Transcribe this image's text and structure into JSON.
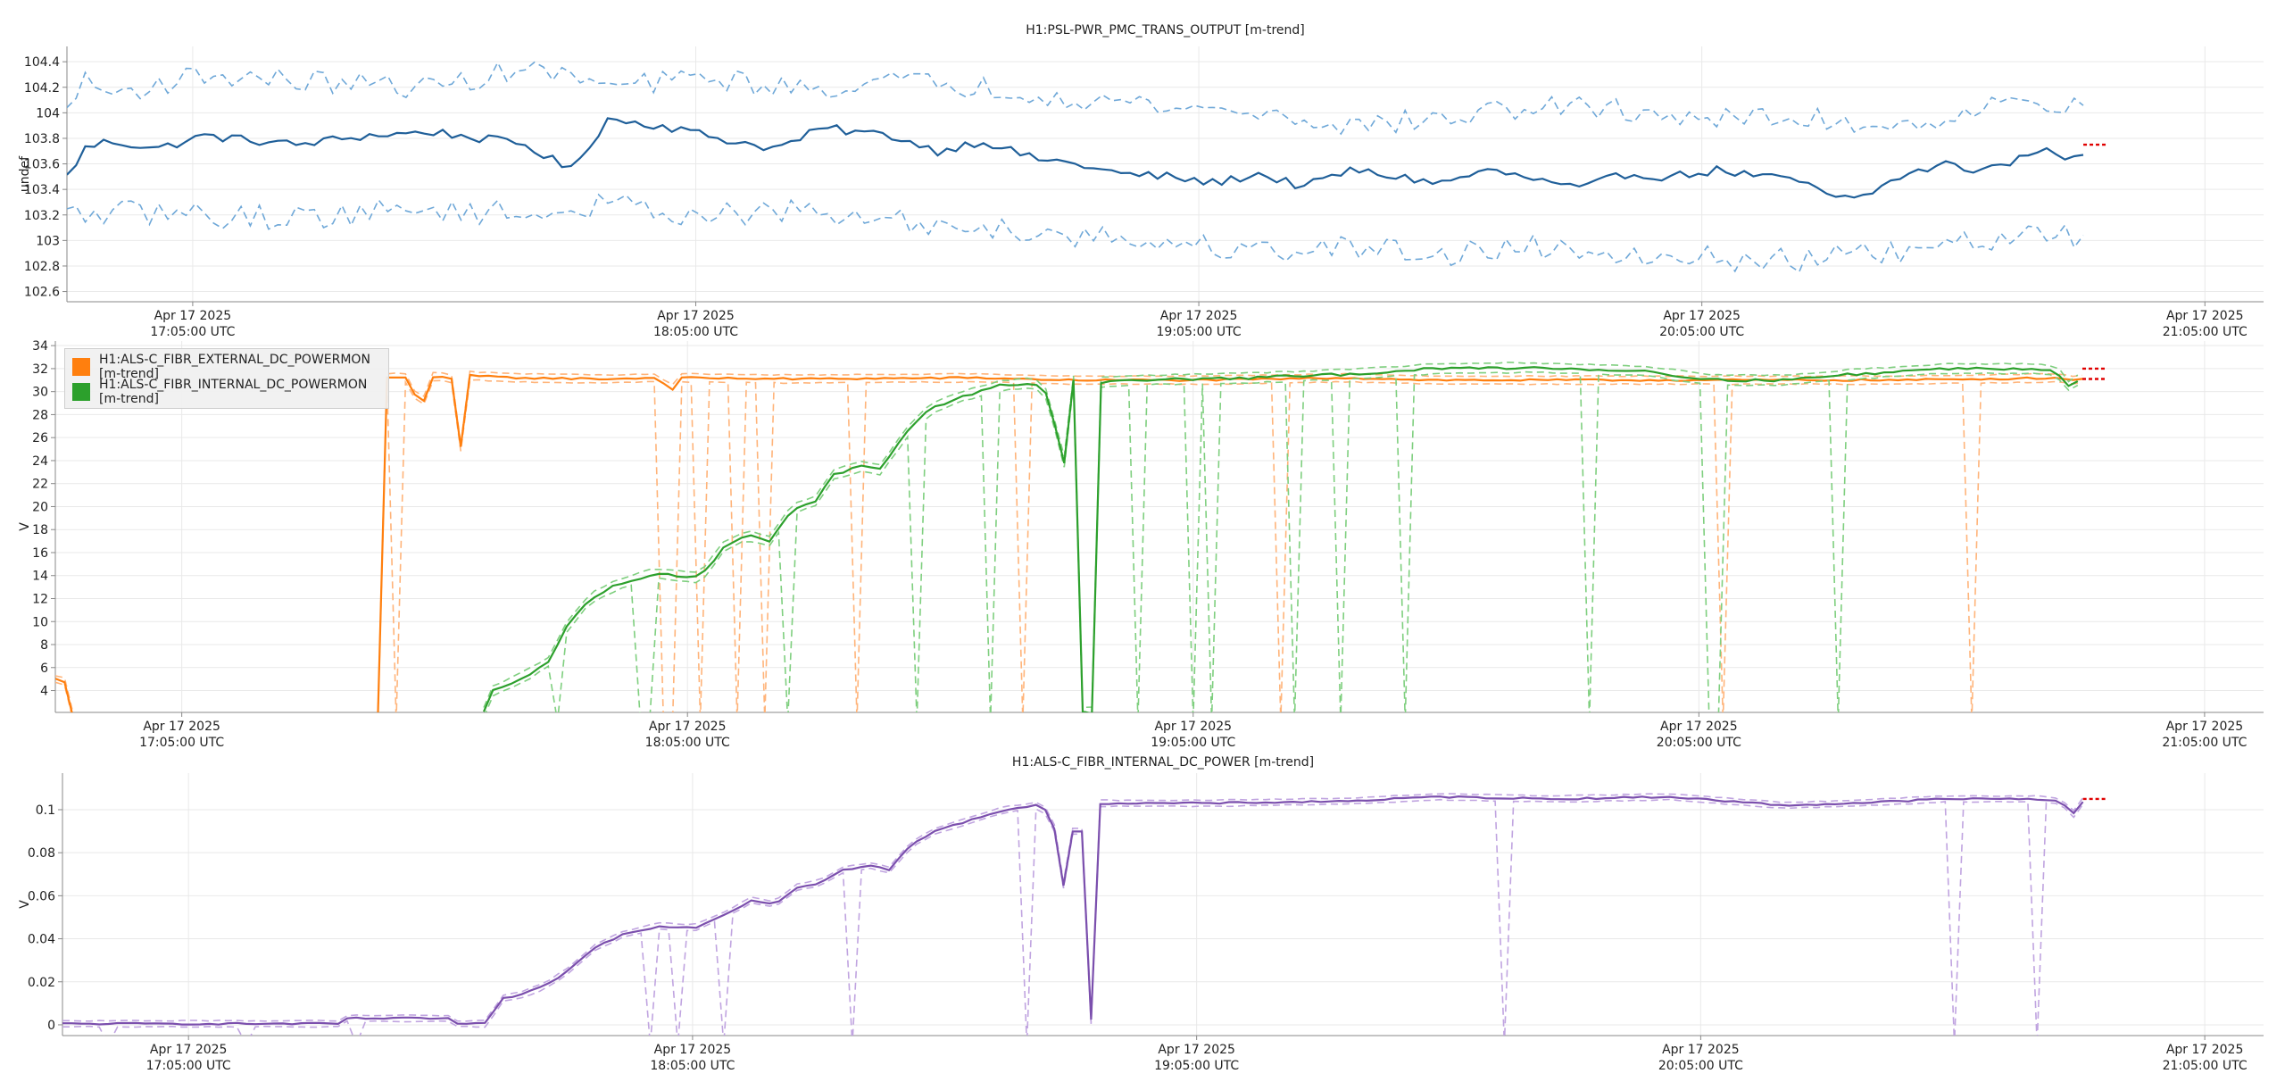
{
  "chart_data": [
    {
      "type": "line",
      "title": "H1:PSL-PWR_PMC_TRANS_OUTPUT [m-trend]",
      "ylabel": "undef",
      "ylim": [
        102.52,
        104.52
      ],
      "yticks": [
        "102.6",
        "102.8",
        "103",
        "103.2",
        "103.4",
        "103.6",
        "103.8",
        "104",
        "104.2",
        "104.4"
      ],
      "x_ticks": [
        {
          "date": "Apr 17 2025",
          "time": "17:05:00 UTC"
        },
        {
          "date": "Apr 17 2025",
          "time": "18:05:00 UTC"
        },
        {
          "date": "Apr 17 2025",
          "time": "19:05:00 UTC"
        },
        {
          "date": "Apr 17 2025",
          "time": "20:05:00 UTC"
        },
        {
          "date": "Apr 17 2025",
          "time": "21:05:00 UTC"
        }
      ],
      "x_range": [
        "2025-04-17T16:50:00Z",
        "2025-04-17T21:12:00Z"
      ],
      "grid": true,
      "series": [
        {
          "name": "H1:PSL-PWR_PMC_TRANS_OUTPUT [m-trend]",
          "color": "#1f5f99",
          "knots": [
            [
              0,
              103.5
            ],
            [
              8,
              103.72
            ],
            [
              18,
              103.78
            ],
            [
              40,
              103.72
            ],
            [
              60,
              103.82
            ],
            [
              100,
              103.75
            ],
            [
              130,
              103.82
            ],
            [
              160,
              103.85
            ],
            [
              200,
              103.75
            ],
            [
              220,
              103.55
            ],
            [
              236,
              103.95
            ],
            [
              260,
              103.9
            ],
            [
              290,
              103.78
            ],
            [
              310,
              103.72
            ],
            [
              330,
              103.88
            ],
            [
              360,
              103.82
            ],
            [
              380,
              103.7
            ],
            [
              400,
              103.78
            ],
            [
              420,
              103.65
            ],
            [
              440,
              103.6
            ],
            [
              460,
              103.52
            ],
            [
              480,
              103.5
            ],
            [
              500,
              103.45
            ],
            [
              520,
              103.52
            ],
            [
              540,
              103.42
            ],
            [
              560,
              103.55
            ],
            [
              580,
              103.5
            ],
            [
              600,
              103.45
            ],
            [
              620,
              103.55
            ],
            [
              640,
              103.48
            ],
            [
              660,
              103.4
            ],
            [
              680,
              103.52
            ],
            [
              700,
              103.5
            ],
            [
              720,
              103.55
            ],
            [
              740,
              103.5
            ],
            [
              760,
              103.45
            ],
            [
              770,
              103.32
            ],
            [
              785,
              103.35
            ],
            [
              800,
              103.5
            ],
            [
              820,
              103.6
            ],
            [
              830,
              103.55
            ],
            [
              848,
              103.6
            ],
            [
              860,
              103.72
            ],
            [
              870,
              103.65
            ],
            [
              880,
              103.7
            ]
          ],
          "noise": 0.035
        },
        {
          "name": "H1:PSL-PWR_PMC_TRANS_OUTPUT [m-trend] max",
          "color": "#6fa8d8",
          "knots": [
            [
              0,
              104.0
            ],
            [
              5,
              104.25
            ],
            [
              20,
              104.15
            ],
            [
              60,
              104.3
            ],
            [
              100,
              104.25
            ],
            [
              160,
              104.2
            ],
            [
              200,
              104.35
            ],
            [
              240,
              104.2
            ],
            [
              280,
              104.28
            ],
            [
              320,
              104.18
            ],
            [
              360,
              104.25
            ],
            [
              400,
              104.2
            ],
            [
              440,
              104.12
            ],
            [
              480,
              104.05
            ],
            [
              520,
              104.0
            ],
            [
              560,
              103.9
            ],
            [
              600,
              103.95
            ],
            [
              640,
              104.05
            ],
            [
              680,
              104.02
            ],
            [
              720,
              103.95
            ],
            [
              760,
              103.95
            ],
            [
              800,
              103.9
            ],
            [
              840,
              104.05
            ],
            [
              880,
              104.1
            ]
          ],
          "noise": 0.09
        },
        {
          "name": "H1:PSL-PWR_PMC_TRANS_OUTPUT [m-trend] min",
          "color": "#6fa8d8",
          "knots": [
            [
              0,
              103.2
            ],
            [
              40,
              103.22
            ],
            [
              80,
              103.18
            ],
            [
              120,
              103.2
            ],
            [
              160,
              103.25
            ],
            [
              200,
              103.2
            ],
            [
              240,
              103.28
            ],
            [
              280,
              103.2
            ],
            [
              320,
              103.22
            ],
            [
              360,
              103.15
            ],
            [
              400,
              103.1
            ],
            [
              440,
              103.05
            ],
            [
              480,
              102.98
            ],
            [
              520,
              102.92
            ],
            [
              560,
              102.95
            ],
            [
              600,
              102.9
            ],
            [
              640,
              102.95
            ],
            [
              680,
              102.92
            ],
            [
              720,
              102.85
            ],
            [
              760,
              102.85
            ],
            [
              800,
              102.9
            ],
            [
              840,
              103.0
            ],
            [
              880,
              103.05
            ]
          ],
          "noise": 0.1
        }
      ],
      "end_marker_value": 103.75
    },
    {
      "type": "line",
      "title": "",
      "ylabel": "V",
      "ylim": [
        2.1,
        34.4
      ],
      "yticks": [
        "4",
        "6",
        "8",
        "10",
        "12",
        "14",
        "16",
        "18",
        "20",
        "22",
        "24",
        "26",
        "28",
        "30",
        "32",
        "34"
      ],
      "x_ticks": [
        {
          "date": "Apr 17 2025",
          "time": "17:05:00 UTC"
        },
        {
          "date": "Apr 17 2025",
          "time": "18:05:00 UTC"
        },
        {
          "date": "Apr 17 2025",
          "time": "19:05:00 UTC"
        },
        {
          "date": "Apr 17 2025",
          "time": "20:05:00 UTC"
        },
        {
          "date": "Apr 17 2025",
          "time": "21:05:00 UTC"
        }
      ],
      "x_range": [
        "2025-04-17T16:50:00Z",
        "2025-04-17T21:12:00Z"
      ],
      "grid": true,
      "legend_position": "top-left",
      "series": [
        {
          "name": "H1:ALS-C_FIBR_EXTERNAL_DC_POWERMON [m-trend]",
          "color": "#ff7f0e",
          "knots": [
            [
              0,
              5
            ],
            [
              4,
              4.8
            ],
            [
              6,
              1.5
            ],
            [
              140,
              1.5
            ],
            [
              144,
              31.2
            ],
            [
              150,
              31.3
            ],
            [
              155,
              31.0
            ],
            [
              158,
              27.2
            ],
            [
              162,
              31.3
            ],
            [
              170,
              31.3
            ],
            [
              173,
              31.0
            ],
            [
              175,
              22.0
            ],
            [
              178,
              31.4
            ],
            [
              200,
              31.2
            ],
            [
              240,
              31.1
            ],
            [
              260,
              31.2
            ],
            [
              270,
              30.0
            ],
            [
              272,
              31.2
            ],
            [
              320,
              31.1
            ],
            [
              400,
              31.2
            ],
            [
              440,
              31.0
            ],
            [
              500,
              31.0
            ],
            [
              560,
              31.2
            ],
            [
              600,
              31.0
            ],
            [
              700,
              31.0
            ],
            [
              800,
              31.0
            ],
            [
              870,
              31.2
            ],
            [
              876,
              31.0
            ],
            [
              880,
              31.1
            ]
          ],
          "noise": 0.08
        },
        {
          "name": "H1:ALS-C_FIBR_INTERNAL_DC_POWERMON [m-trend]",
          "color": "#2ca02c",
          "knots": [
            [
              186,
              2.1
            ],
            [
              188,
              3.8
            ],
            [
              196,
              4.5
            ],
            [
              206,
              5.5
            ],
            [
              214,
              6.5
            ],
            [
              222,
              9.5
            ],
            [
              232,
              12.0
            ],
            [
              244,
              13.2
            ],
            [
              260,
              14.2
            ],
            [
              270,
              14.0
            ],
            [
              280,
              13.8
            ],
            [
              290,
              16.5
            ],
            [
              300,
              17.5
            ],
            [
              310,
              17.0
            ],
            [
              320,
              19.8
            ],
            [
              330,
              20.5
            ],
            [
              338,
              22.8
            ],
            [
              350,
              23.5
            ],
            [
              358,
              23.2
            ],
            [
              370,
              26.5
            ],
            [
              380,
              28.5
            ],
            [
              392,
              29.5
            ],
            [
              410,
              30.5
            ],
            [
              425,
              30.8
            ],
            [
              430,
              29.8
            ],
            [
              434,
              27.0
            ],
            [
              436,
              19.8
            ],
            [
              440,
              28.0
            ],
            [
              442,
              31.0
            ],
            [
              444,
              28.0
            ],
            [
              446,
              2.1
            ],
            [
              450,
              2.1
            ],
            [
              452,
              30.8
            ],
            [
              470,
              31.0
            ],
            [
              520,
              31.2
            ],
            [
              560,
              31.5
            ],
            [
              600,
              32.0
            ],
            [
              640,
              32.1
            ],
            [
              690,
              31.8
            ],
            [
              720,
              31.0
            ],
            [
              750,
              31.0
            ],
            [
              780,
              31.5
            ],
            [
              820,
              32.0
            ],
            [
              860,
              32.0
            ],
            [
              868,
              31.8
            ],
            [
              872,
              31.2
            ],
            [
              876,
              29.8
            ],
            [
              878,
              31.0
            ],
            [
              880,
              31.5
            ]
          ],
          "noise": 0.12
        }
      ],
      "end_marker_values": [
        31.1,
        32.0
      ]
    },
    {
      "type": "line",
      "title": "H1:ALS-C_FIBR_INTERNAL_DC_POWER [m-trend]",
      "ylabel": "V",
      "ylim": [
        -0.005,
        0.117
      ],
      "yticks": [
        "0",
        "0.02",
        "0.04",
        "0.06",
        "0.08",
        "0.1"
      ],
      "x_ticks": [
        {
          "date": "Apr 17 2025",
          "time": "17:05:00 UTC"
        },
        {
          "date": "Apr 17 2025",
          "time": "18:05:00 UTC"
        },
        {
          "date": "Apr 17 2025",
          "time": "19:05:00 UTC"
        },
        {
          "date": "Apr 17 2025",
          "time": "20:05:00 UTC"
        },
        {
          "date": "Apr 17 2025",
          "time": "21:05:00 UTC"
        }
      ],
      "x_range": [
        "2025-04-17T16:50:00Z",
        "2025-04-17T21:12:00Z"
      ],
      "grid": true,
      "series": [
        {
          "name": "H1:ALS-C_FIBR_INTERNAL_DC_POWER [m-trend]",
          "color": "#7b4fad",
          "knots": [
            [
              0,
              0.0005
            ],
            [
              120,
              0.0005
            ],
            [
              124,
              0.003
            ],
            [
              140,
              0.003
            ],
            [
              160,
              0.003
            ],
            [
              168,
              0.003
            ],
            [
              172,
              0.0005
            ],
            [
              186,
              0.0005
            ],
            [
              190,
              0.012
            ],
            [
              200,
              0.014
            ],
            [
              210,
              0.018
            ],
            [
              220,
              0.025
            ],
            [
              232,
              0.036
            ],
            [
              244,
              0.042
            ],
            [
              260,
              0.046
            ],
            [
              275,
              0.045
            ],
            [
              290,
              0.052
            ],
            [
              300,
              0.058
            ],
            [
              310,
              0.056
            ],
            [
              320,
              0.064
            ],
            [
              330,
              0.066
            ],
            [
              340,
              0.072
            ],
            [
              352,
              0.074
            ],
            [
              360,
              0.072
            ],
            [
              370,
              0.084
            ],
            [
              380,
              0.09
            ],
            [
              392,
              0.094
            ],
            [
              410,
              0.1
            ],
            [
              425,
              0.102
            ],
            [
              430,
              0.098
            ],
            [
              434,
              0.085
            ],
            [
              436,
              0.065
            ],
            [
              440,
              0.09
            ],
            [
              442,
              0.104
            ],
            [
              444,
              0.09
            ],
            [
              446,
              0.002
            ],
            [
              450,
              0.002
            ],
            [
              452,
              0.103
            ],
            [
              500,
              0.103
            ],
            [
              560,
              0.104
            ],
            [
              600,
              0.106
            ],
            [
              650,
              0.105
            ],
            [
              700,
              0.106
            ],
            [
              750,
              0.102
            ],
            [
              780,
              0.103
            ],
            [
              820,
              0.105
            ],
            [
              860,
              0.105
            ],
            [
              870,
              0.104
            ],
            [
              874,
              0.1
            ],
            [
              876,
              0.098
            ],
            [
              880,
              0.104
            ]
          ],
          "noise": 0.0004
        }
      ],
      "end_marker_value": 0.105
    }
  ]
}
